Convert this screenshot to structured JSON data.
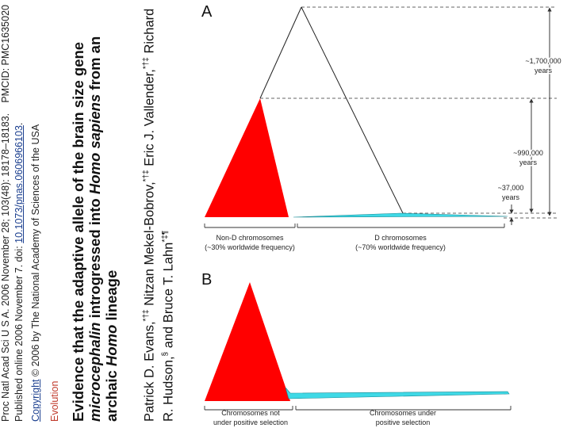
{
  "article": {
    "citation_line": "Proc Natl Acad Sci U S A. 2006 November 28; 103(48): 18178–18183.",
    "pmcid": "PMCID: PMC1635020",
    "published_prefix": "Published online 2006 November 7. doi: ",
    "doi": "10.1073/pnas.0606966103",
    "published_suffix": ".",
    "copyright_link": "Copyright",
    "copyright_text": " © 2006 by The National Academy of Sciences of the USA",
    "section": "Evolution",
    "title_part1": "Evidence that the adaptive allele of the brain size gene ",
    "title_gene": "microcephalin",
    "title_part2": " introgressed into ",
    "title_species": "Homo sapiens",
    "title_part3": " from an archaic ",
    "title_genus": "Homo",
    "title_part4": " lineage",
    "author1": "Patrick D. Evans,",
    "author1_marks": "*†‡",
    "author2": " Nitzan Mekel-Bobrov,",
    "author2_marks": "*†‡",
    "author3": " Eric J. Vallender,",
    "author3_marks": "*†‡",
    "author4": " Richard R. Hudson,",
    "author4_marks": "§",
    "author5_prefix": " and Bruce T. Lahn",
    "author5_marks": "*‡¶"
  },
  "figure": {
    "panel_a": {
      "letter": "A",
      "time_1": "~1,700,000",
      "time_1_unit": "years",
      "time_2": "~990,000",
      "time_2_unit": "years",
      "time_3": "~37,000",
      "time_3_unit": "years",
      "group_left_line1": "Non-D chromosomes",
      "group_left_line2": "(~30% worldwide frequency)",
      "group_right_line1": "D chromosomes",
      "group_right_line2": "(~70% worldwide frequency)"
    },
    "panel_b": {
      "letter": "B",
      "group_left_line1": "Chromosomes not",
      "group_left_line2": "under positive selection",
      "group_right_line1": "Chromosomes under",
      "group_right_line2": "positive  selection"
    },
    "colors": {
      "red_clade": "#ff0000",
      "cyan_clade": "#3fd9e6",
      "line": "#333333"
    }
  }
}
